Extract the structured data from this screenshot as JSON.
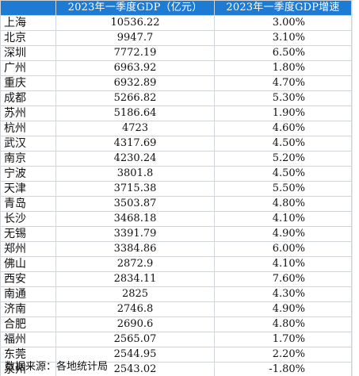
{
  "table": {
    "headers": [
      "",
      "2023年一季度GDP（亿元）",
      "2023年一季度GDP增速"
    ],
    "rows": [
      {
        "city": "上海",
        "gdp": "10536.22",
        "growth": "3.00%"
      },
      {
        "city": "北京",
        "gdp": "9947.7",
        "growth": "3.10%"
      },
      {
        "city": "深圳",
        "gdp": "7772.19",
        "growth": "6.50%"
      },
      {
        "city": "广州",
        "gdp": "6963.92",
        "growth": "1.80%"
      },
      {
        "city": "重庆",
        "gdp": "6932.89",
        "growth": "4.70%"
      },
      {
        "city": "成都",
        "gdp": "5266.82",
        "growth": "5.30%"
      },
      {
        "city": "苏州",
        "gdp": "5186.64",
        "growth": "1.90%"
      },
      {
        "city": "杭州",
        "gdp": "4723",
        "growth": "4.60%"
      },
      {
        "city": "武汉",
        "gdp": "4317.69",
        "growth": "4.50%"
      },
      {
        "city": "南京",
        "gdp": "4230.24",
        "growth": "5.20%"
      },
      {
        "city": "宁波",
        "gdp": "3801.8",
        "growth": "4.50%"
      },
      {
        "city": "天津",
        "gdp": "3715.38",
        "growth": "5.50%"
      },
      {
        "city": "青岛",
        "gdp": "3503.87",
        "growth": "4.80%"
      },
      {
        "city": "长沙",
        "gdp": "3468.18",
        "growth": "4.10%"
      },
      {
        "city": "无锡",
        "gdp": "3391.79",
        "growth": "4.90%"
      },
      {
        "city": "郑州",
        "gdp": "3384.86",
        "growth": "6.00%"
      },
      {
        "city": "佛山",
        "gdp": "2872.9",
        "growth": "4.10%"
      },
      {
        "city": "西安",
        "gdp": "2834.11",
        "growth": "7.60%"
      },
      {
        "city": "南通",
        "gdp": "2825",
        "growth": "4.30%"
      },
      {
        "city": "济南",
        "gdp": "2746.8",
        "growth": "4.90%"
      },
      {
        "city": "合肥",
        "gdp": "2690.6",
        "growth": "4.80%"
      },
      {
        "city": "福州",
        "gdp": "2565.07",
        "growth": "1.70%"
      },
      {
        "city": "东莞",
        "gdp": "2544.95",
        "growth": "2.20%"
      },
      {
        "city": "泉州",
        "gdp": "2543.02",
        "growth": "-1.80%"
      }
    ]
  },
  "source_note": "数据来源：各地统计局",
  "colors": {
    "header_bg": "#1d7bd4",
    "header_text": "#ffffff",
    "grid_line": "#cfd5d9"
  }
}
